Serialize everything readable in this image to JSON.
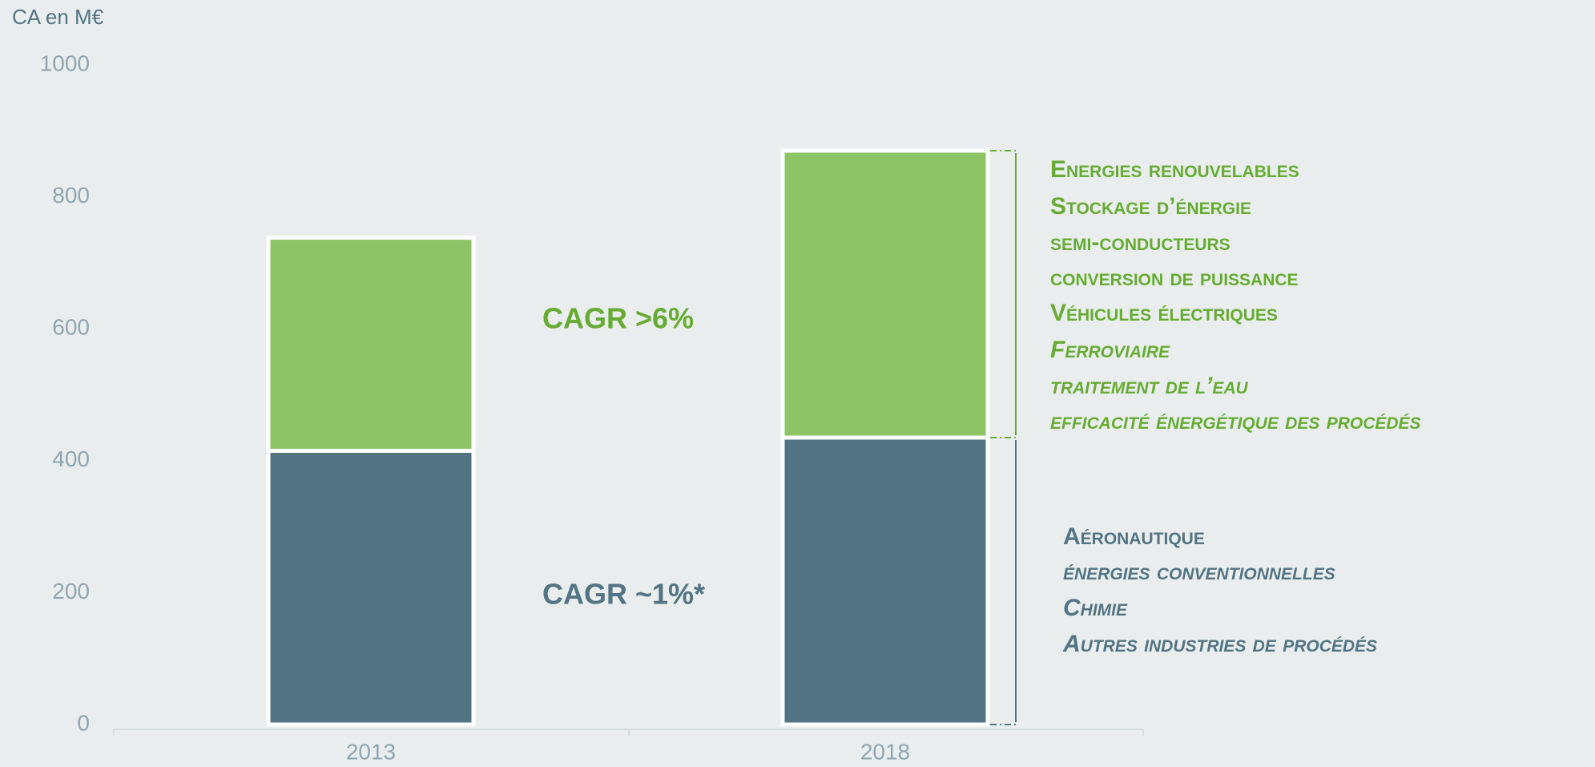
{
  "chart_data": {
    "type": "stacked_bar",
    "y_axis_title": "CA en M€",
    "categories": [
      "2013",
      "2018"
    ],
    "series": [
      {
        "name": "Blue segment",
        "color": "#527484",
        "values": [
          415,
          435
        ]
      },
      {
        "name": "Green segment",
        "color": "#8dc466",
        "values": [
          323,
          435
        ]
      }
    ],
    "ylim": [
      0,
      1000
    ],
    "yticks": [
      0,
      200,
      400,
      600,
      800,
      1000
    ],
    "annotations": [
      "CAGR >6%",
      "CAGR ~1%*"
    ],
    "green_list": [
      "Energies renouvelables",
      "Stockage d’énergie",
      "semi-conducteurs",
      "conversion de puissance",
      "Véhicules électriques",
      "Ferroviaire",
      "traitement de l’eau",
      "efficacité énergétique des procédés"
    ],
    "blue_list": [
      "Aéronautique",
      "énergies conventionnelles",
      "Chimie",
      "Autres industries de procédés"
    ]
  }
}
